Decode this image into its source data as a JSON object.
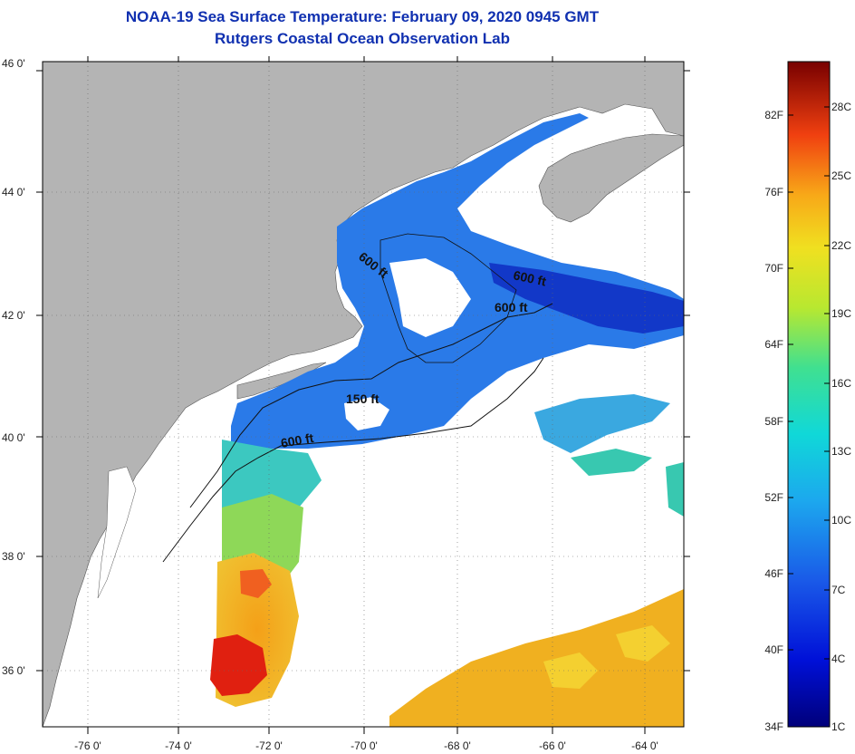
{
  "title_line1": "NOAA-19 Sea Surface Temperature:  February 09, 2020 0945 GMT",
  "title_line2": "Rutgers Coastal Ocean Observation Lab",
  "lat_labels": [
    "46 0'",
    "44 0'",
    "42 0'",
    "40 0'",
    "38 0'",
    "36 0'"
  ],
  "lon_labels": [
    "-76 0'",
    "-74 0'",
    "-72 0'",
    "-70 0'",
    "-68 0'",
    "-66 0'",
    "-64 0'"
  ],
  "contour_labels": [
    "600 ft",
    "600 ft",
    "600 ft",
    "150 ft",
    "600 ft"
  ],
  "colorbar": {
    "fahrenheit": [
      "82F",
      "76F",
      "70F",
      "64F",
      "58F",
      "52F",
      "46F",
      "40F",
      "34F"
    ],
    "celsius": [
      "28C",
      "25C",
      "22C",
      "19C",
      "16C",
      "13C",
      "10C",
      "7C",
      "4C",
      "1C"
    ]
  },
  "colors": {
    "land": "#b4b4b4",
    "cloud": "#ffffff",
    "title": "#1030b0",
    "cold": "#1e5ad8",
    "warm": "#f0a020",
    "hot": "#e02010"
  }
}
